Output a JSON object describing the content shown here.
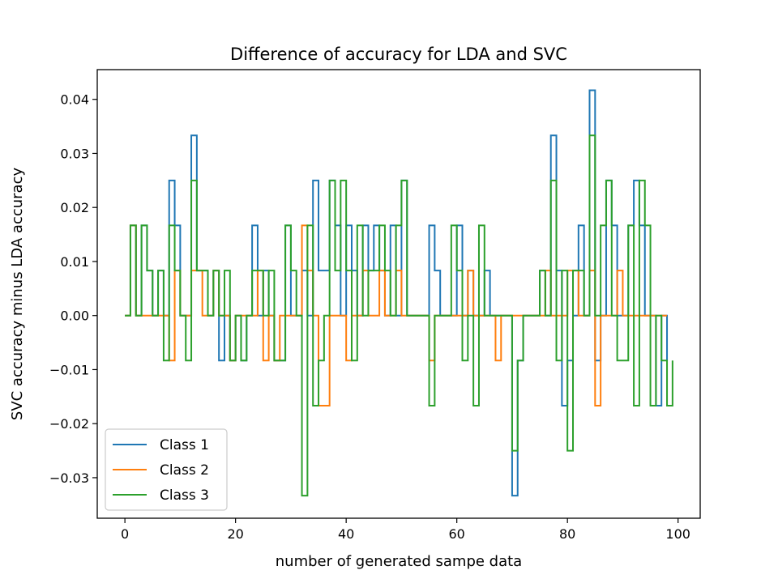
{
  "chart_data": {
    "type": "line",
    "step": "post",
    "title": "Difference of accuracy for LDA and SVC",
    "xlabel": "number of generated sampe data",
    "ylabel": "SVC accuracy minus LDA accuracy",
    "xlim": [
      -5,
      104
    ],
    "ylim": [
      -0.0375,
      0.0455
    ],
    "xticks": [
      0,
      20,
      40,
      60,
      80,
      100
    ],
    "xtick_labels": [
      "0",
      "20",
      "40",
      "60",
      "80",
      "100"
    ],
    "yticks": [
      -0.03,
      -0.02,
      -0.01,
      0.0,
      0.01,
      0.02,
      0.03,
      0.04
    ],
    "ytick_labels": [
      "−0.03",
      "−0.02",
      "−0.01",
      "0.00",
      "0.01",
      "0.02",
      "0.03",
      "0.04"
    ],
    "grid": false,
    "legend": "lower left",
    "series": [
      {
        "name": "Class 1",
        "color": "#1f77b4",
        "values": [
          0,
          0.01667,
          0,
          0.01667,
          0.00833,
          0,
          0.00833,
          0,
          0.025,
          0.01667,
          0,
          0,
          0.03333,
          0.00833,
          0.00833,
          0,
          0.00833,
          -0.00833,
          0,
          -0.00833,
          0,
          -0.00833,
          0,
          0.01667,
          0,
          0.00833,
          0,
          -0.00833,
          -0.00833,
          0.01667,
          0,
          0,
          0.00833,
          0,
          0.025,
          0.00833,
          0.00833,
          0.025,
          0.01667,
          0,
          0.01667,
          0.00833,
          0,
          0.01667,
          0.00833,
          0.01667,
          0.00833,
          0,
          0.01667,
          0,
          0.025,
          0,
          0,
          0,
          0,
          0.01667,
          0.00833,
          0,
          0,
          0,
          0.01667,
          0,
          0.00833,
          0,
          0,
          0.00833,
          0,
          0,
          0,
          0,
          -0.03333,
          -0.00833,
          0,
          0,
          0,
          0.00833,
          0,
          0.03333,
          0.00833,
          -0.01667,
          -0.00833,
          0,
          0.01667,
          0,
          0.04167,
          -0.00833,
          0,
          0.025,
          0.01667,
          0,
          0,
          0.01667,
          0.025,
          0.01667,
          0,
          0,
          -0.01667,
          0,
          -0.00833
        ]
      },
      {
        "name": "Class 2",
        "color": "#ff7f0e",
        "values": [
          0,
          0.01667,
          0,
          0,
          0,
          0,
          0,
          0,
          -0.00833,
          0.00833,
          0,
          0,
          0.00833,
          0.00833,
          0,
          0,
          0.00833,
          0,
          0,
          -0.00833,
          0,
          0,
          0,
          0,
          0.00833,
          -0.00833,
          0,
          -0.00833,
          0,
          0,
          0,
          0,
          0.01667,
          0.00833,
          0,
          -0.01667,
          -0.01667,
          0,
          0,
          0,
          -0.00833,
          0,
          0,
          0.00833,
          0,
          0,
          0.00833,
          0,
          0,
          0.00833,
          0,
          0,
          0,
          0,
          0,
          -0.00833,
          0,
          0,
          0,
          0,
          0,
          0,
          0.00833,
          0,
          0,
          0,
          0,
          -0.00833,
          0,
          0,
          0,
          0,
          0,
          0,
          0,
          0,
          0.00833,
          0,
          0,
          0,
          0.00833,
          0.00833,
          0,
          0,
          0.00833,
          -0.01667,
          0,
          0,
          0,
          0.00833,
          0,
          0,
          0,
          0,
          0,
          0,
          0,
          0,
          0
        ]
      },
      {
        "name": "Class 3",
        "color": "#2ca02c",
        "values": [
          0,
          0.01667,
          0,
          0.01667,
          0.00833,
          0,
          0.00833,
          -0.00833,
          0.01667,
          0.00833,
          0,
          -0.00833,
          0.025,
          0.00833,
          0.00833,
          0,
          0.00833,
          0,
          0.00833,
          -0.00833,
          0,
          -0.00833,
          0,
          0.00833,
          0.00833,
          0,
          0.00833,
          -0.00833,
          -0.00833,
          0.01667,
          0.00833,
          0,
          -0.03333,
          0.01667,
          -0.01667,
          -0.00833,
          0,
          0.025,
          0.00833,
          0.025,
          0.00833,
          -0.00833,
          0.01667,
          0,
          0.00833,
          0.00833,
          0.01667,
          0.00833,
          0,
          0.01667,
          0.025,
          0,
          0,
          0,
          0,
          -0.01667,
          0,
          0,
          0,
          0.01667,
          0.00833,
          -0.00833,
          0,
          -0.01667,
          0.01667,
          0,
          0,
          0,
          0,
          0,
          -0.025,
          -0.00833,
          0,
          0,
          0,
          0.00833,
          0,
          0.025,
          -0.00833,
          0.00833,
          -0.025,
          0.00833,
          0.00833,
          0,
          0.03333,
          0,
          0.01667,
          0.025,
          0,
          -0.00833,
          -0.00833,
          0.01667,
          -0.01667,
          0.025,
          0.01667,
          -0.01667,
          0,
          -0.00833,
          -0.01667,
          -0.00833
        ]
      }
    ]
  }
}
